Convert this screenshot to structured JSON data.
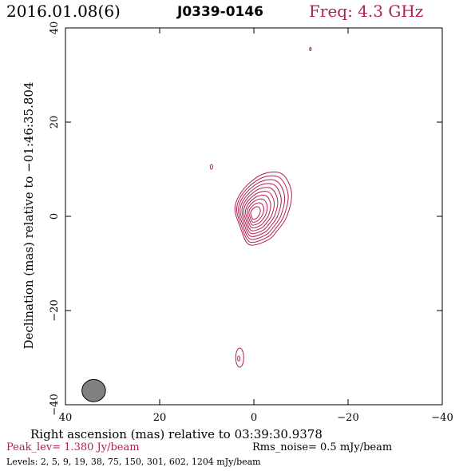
{
  "header": {
    "date": "2016.01.08(6)",
    "source": "J0339-0146",
    "freq": "Freq: 4.3 GHz"
  },
  "chart_data": {
    "type": "contour",
    "xlabel": "Right ascension (mas) relative to 03:39:30.9378",
    "ylabel": "Declination (mas) relative to −01:46:35.804",
    "xlim": [
      40,
      -40
    ],
    "ylim": [
      -40,
      40
    ],
    "x_ticks": [
      40,
      20,
      0,
      -20,
      -40
    ],
    "y_ticks": [
      40,
      20,
      0,
      -20,
      -40
    ],
    "x_tick_labels": [
      "40",
      "20",
      "0",
      "−20",
      "−40"
    ],
    "y_tick_labels": [
      "40",
      "20",
      "0",
      "−20",
      "−40"
    ],
    "peak_text": "Peak_lev=  1.380 Jy/beam",
    "rms_text": "Rms_noise=  0.5 mJy/beam",
    "levels_text": "Levels:   2,    5,    9,   19,   38,   75,  150,  301,  602,  1204 mJy/beam",
    "levels_mJy": [
      2,
      5,
      9,
      19,
      38,
      75,
      150,
      301,
      602,
      1204
    ],
    "peak_position_mas": [
      0.0,
      0.5
    ],
    "beam": {
      "x": 34,
      "y": -37,
      "major": 4.5,
      "minor": 2.0,
      "pa_deg": 0
    },
    "contour_color": "#b41e50",
    "beam_color": "#808080"
  }
}
